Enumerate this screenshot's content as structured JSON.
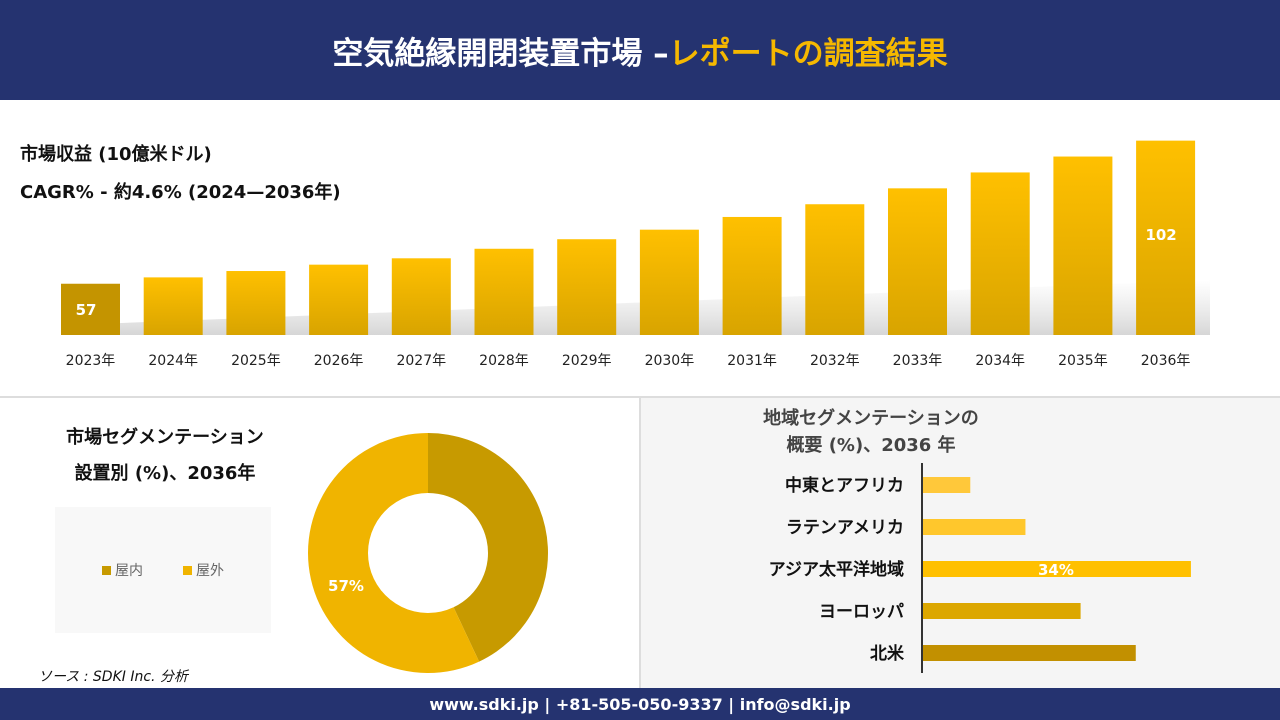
{
  "header": {
    "title_main": "空気絶縁開閉装置市場 –",
    "title_accent": "レポートの調査結果"
  },
  "revenue": {
    "label": "市場収益 (10億米ドル)",
    "cagr": "CAGR% - 約4.6% (2024—2036年)"
  },
  "chart_data": [
    {
      "type": "bar",
      "categories": [
        "2023年",
        "2024年",
        "2025年",
        "2026年",
        "2027年",
        "2028年",
        "2029年",
        "2030年",
        "2031年",
        "2032年",
        "2033年",
        "2034年",
        "2035年",
        "2036年"
      ],
      "values": [
        57,
        59,
        61,
        63,
        65,
        68,
        71,
        74,
        78,
        82,
        87,
        92,
        97,
        102
      ],
      "data_labels": {
        "0": "57",
        "13": "102"
      },
      "ylabel": "市場収益 (10億米ドル)"
    },
    {
      "type": "pie",
      "title": "市場セグメンテーション 設置別 (%)、2036年",
      "categories": [
        "屋内",
        "屋外"
      ],
      "values": [
        43,
        57
      ],
      "data_labels": {
        "1": "57%"
      },
      "colors": [
        "#c79a00",
        "#f0b400"
      ],
      "legend": "left"
    },
    {
      "type": "bar",
      "orientation": "horizontal",
      "title": "地域セグメンテーションの 概要 (%)、2036 年",
      "categories": [
        "中東とアフリカ",
        "ラテンアメリカ",
        "アジア太平洋地域",
        "ヨーロッパ",
        "北米"
      ],
      "values": [
        6,
        13,
        34,
        20,
        27
      ],
      "data_labels": {
        "2": "34%"
      },
      "colors": [
        "#ffc83a",
        "#ffc72c",
        "#ffc000",
        "#dca700",
        "#c29000"
      ]
    }
  ],
  "segment": {
    "title1": "市場セグメンテーション",
    "title2": "設置別 (%)、2036年"
  },
  "region": {
    "title1": "地域セグメンテーションの",
    "title2": "概要 (%)、2036 年"
  },
  "source": "ソース : SDKI Inc. 分析",
  "footer": "www.sdki.jp | +81-505-050-9337 | info@sdki.jp"
}
